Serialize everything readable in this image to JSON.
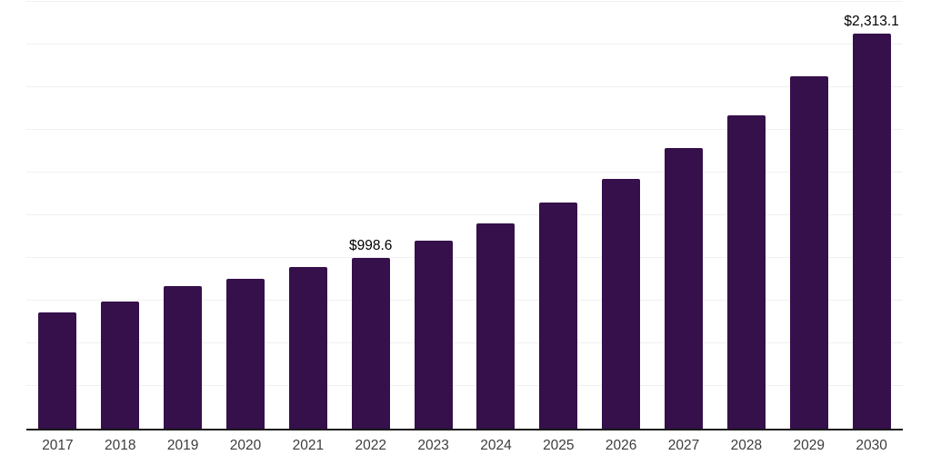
{
  "chart_data": {
    "type": "bar",
    "title": "",
    "xlabel": "",
    "ylabel": "",
    "categories": [
      "2017",
      "2018",
      "2019",
      "2020",
      "2021",
      "2022",
      "2023",
      "2024",
      "2025",
      "2026",
      "2027",
      "2028",
      "2029",
      "2030"
    ],
    "values": [
      680,
      745,
      835,
      875,
      945,
      998.6,
      1100,
      1200,
      1325,
      1460,
      1640,
      1835,
      2060,
      2313.1
    ],
    "data_labels": [
      "",
      "",
      "",
      "",
      "",
      "$998.6",
      "",
      "",
      "",
      "",
      "",
      "",
      "",
      "$2,313.1"
    ],
    "ylim": [
      0,
      2500
    ],
    "gridline_interval": 250,
    "grid": true,
    "legend": "none",
    "y_tick_labels_visible": false,
    "colors": {
      "bar": "#35104a",
      "gridline": "#f0f0f0",
      "axis_line": "#1a1a1a",
      "tick_label": "#3d3d3d",
      "data_label": "#000000",
      "background": "#ffffff"
    }
  }
}
